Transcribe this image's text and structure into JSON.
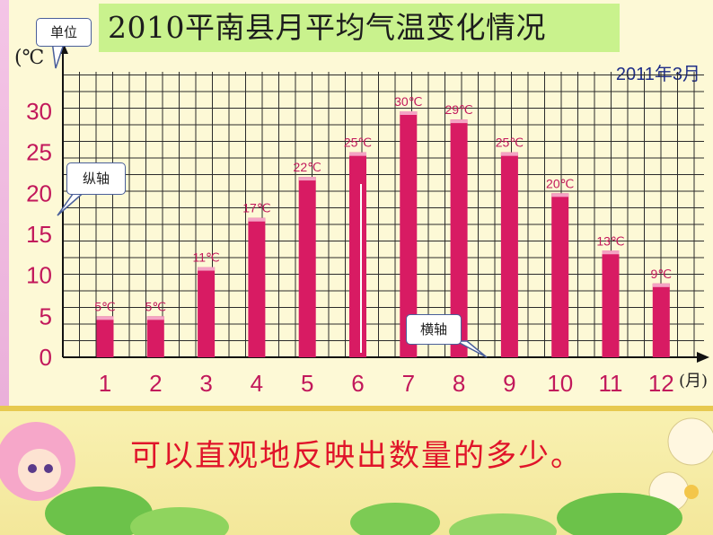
{
  "slide": {
    "title": "2010平南县月平均气温变化情况",
    "date": "2011年3月",
    "caption": "可以直观地反映出数量的多少。",
    "unit_symbol": "(℃",
    "callouts": {
      "unit": "单位",
      "y_axis": "纵轴",
      "x_axis": "横轴"
    }
  },
  "chart_data": {
    "type": "bar",
    "title": "2010平南县月平均气温变化情况",
    "xlabel": "(月)",
    "ylabel": "(℃",
    "ylim": [
      0,
      35
    ],
    "yticks": [
      "0",
      "5",
      "10",
      "15",
      "20",
      "25",
      "30"
    ],
    "categories": [
      "1",
      "2",
      "3",
      "4",
      "5",
      "6",
      "7",
      "8",
      "9",
      "10",
      "11",
      "12"
    ],
    "values": [
      5,
      5,
      11,
      17,
      22,
      25,
      30,
      29,
      25,
      20,
      13,
      9
    ],
    "data_labels": [
      "5℃",
      "5℃",
      "11℃",
      "17℃",
      "22℃",
      "25℃",
      "30℃",
      "29℃",
      "25℃",
      "20℃",
      "13℃",
      "9℃"
    ],
    "grid": true,
    "colors": {
      "bar": "#d81b63",
      "bar_top": "#f4a3c4",
      "grid": "#2b2b2b",
      "label": "#c2185b",
      "tick": "#c2185b"
    }
  }
}
